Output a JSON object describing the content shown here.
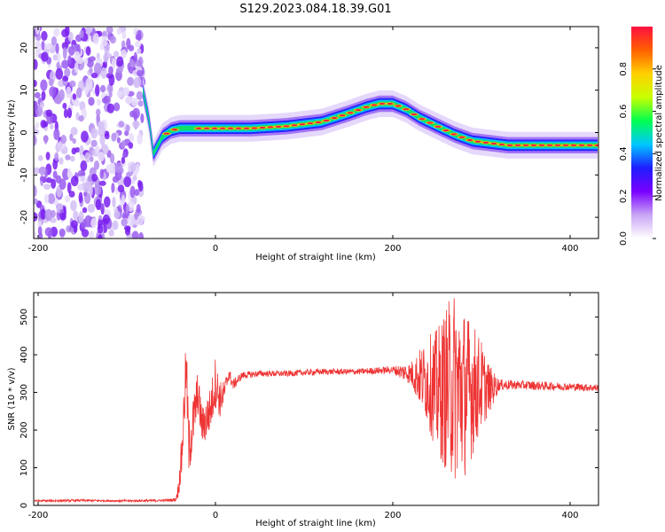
{
  "title": "S129.2023.084.18.39.G01",
  "chart_data": [
    {
      "type": "heatmap",
      "title": "",
      "xlabel": "Height of straight line (km)",
      "ylabel": "Frequency (Hz)",
      "xlim": [
        -205,
        432
      ],
      "ylim": [
        -25,
        25
      ],
      "xticks": [
        -200,
        0,
        200,
        400
      ],
      "yticks": [
        -20,
        -10,
        0,
        10,
        20
      ],
      "noise_region_x": [
        -205,
        -82
      ],
      "ridge": {
        "x": [
          -82,
          -75,
          -70,
          -60,
          -50,
          -40,
          -20,
          0,
          40,
          80,
          120,
          150,
          170,
          185,
          200,
          215,
          230,
          250,
          270,
          290,
          310,
          330,
          360,
          400,
          432
        ],
        "freq": [
          10,
          3,
          -5,
          -1,
          0.5,
          1,
          1,
          1,
          1,
          1.5,
          2.5,
          4.5,
          6,
          6.8,
          6.8,
          5.5,
          3.5,
          1.5,
          -0.5,
          -2,
          -2.5,
          -3,
          -3,
          -3,
          -3
        ]
      },
      "colorbar": {
        "label": "Normalized spectral amplitude",
        "range": [
          0,
          1
        ],
        "ticks": [
          "0.0",
          "0.2",
          "0.4",
          "0.6",
          "0.8"
        ],
        "colors": [
          "#ffffff",
          "#c9a6f5",
          "#7a00ff",
          "#1e1eff",
          "#00c8ff",
          "#00ff50",
          "#c8ff00",
          "#ffd000",
          "#ff6000",
          "#ff1040"
        ]
      }
    },
    {
      "type": "line",
      "title": "",
      "xlabel": "Height of straight line (km)",
      "ylabel": "SNR (10 * v/v)",
      "xlim": [
        -205,
        432
      ],
      "ylim": [
        0,
        565
      ],
      "xticks": [
        -200,
        0,
        200,
        400
      ],
      "yticks": [
        0,
        100,
        200,
        300,
        400,
        500
      ],
      "color": "#ee3333",
      "series": [
        {
          "x": [
            -205,
            -150,
            -100,
            -60,
            -45,
            -42,
            -38,
            -33,
            -30,
            -25,
            -20,
            -15,
            -10,
            -5,
            0,
            5,
            10,
            15,
            20,
            30,
            50,
            80,
            120,
            160,
            200,
            220,
            240,
            250,
            260,
            270,
            280,
            290,
            300,
            310,
            320,
            340,
            360,
            400,
            432
          ],
          "values": [
            12,
            13,
            12,
            13,
            15,
            40,
            130,
            370,
            150,
            220,
            300,
            210,
            230,
            260,
            330,
            280,
            300,
            350,
            320,
            345,
            350,
            350,
            355,
            355,
            360,
            350,
            330,
            300,
            310,
            320,
            300,
            310,
            320,
            310,
            320,
            320,
            318,
            315,
            312
          ],
          "spread": [
            3,
            3,
            3,
            3,
            5,
            20,
            60,
            80,
            80,
            70,
            60,
            50,
            60,
            60,
            70,
            50,
            30,
            20,
            15,
            10,
            8,
            8,
            8,
            8,
            10,
            30,
            120,
            170,
            220,
            260,
            230,
            180,
            120,
            60,
            15,
            12,
            12,
            10,
            10
          ]
        }
      ]
    }
  ]
}
